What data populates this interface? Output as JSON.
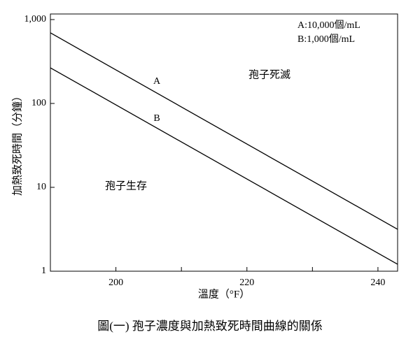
{
  "chart_data": {
    "type": "line",
    "caption": "圖(一) 孢子濃度與加熱致死時間曲線的關係",
    "x_label": "溫度（°F）",
    "y_label": "加熱致死時間（分鐘）",
    "x": [
      190,
      243
    ],
    "series": [
      {
        "name": "A",
        "color": "#000000",
        "values": [
          695,
          3.16
        ]
      },
      {
        "name": "B",
        "color": "#000000",
        "values": [
          266,
          1.21
        ]
      }
    ],
    "legend_texts": [
      "A:10,000個/mL",
      "B:1,000個/mL"
    ],
    "annotations": [
      "孢子死滅",
      "孢子生存"
    ],
    "xlim": [
      190,
      243
    ],
    "xticks": [
      200,
      220,
      240
    ],
    "xminorticks": [
      210,
      230
    ],
    "ylim": [
      1,
      1000
    ],
    "yticks": [
      1,
      10,
      100,
      {
        "value": 1000,
        "label": "1,000"
      }
    ],
    "y_log": true,
    "grid": false
  }
}
